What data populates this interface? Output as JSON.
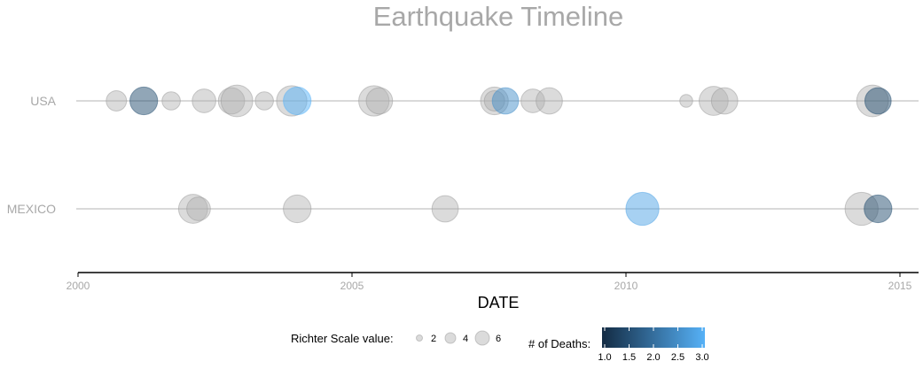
{
  "chart_data": {
    "type": "scatter",
    "title": "Earthquake Timeline",
    "xlabel": "DATE",
    "ylabel": "",
    "xlim": [
      2000,
      2015.3
    ],
    "x_ticks": [
      "2000",
      "2005",
      "2010",
      "2015"
    ],
    "categories": [
      "USA",
      "MEXICO"
    ],
    "series": [
      {
        "category": "USA",
        "points": [
          {
            "x": 2000.7,
            "size": 5.3,
            "deaths": null
          },
          {
            "x": 2001.2,
            "size": 6.4,
            "deaths": 1.5
          },
          {
            "x": 2001.7,
            "size": 5.0,
            "deaths": null
          },
          {
            "x": 2002.3,
            "size": 5.8,
            "deaths": null
          },
          {
            "x": 2002.8,
            "size": 6.2,
            "deaths": null
          },
          {
            "x": 2002.9,
            "size": 7.0,
            "deaths": null
          },
          {
            "x": 2003.4,
            "size": 5.0,
            "deaths": null
          },
          {
            "x": 2003.9,
            "size": 6.8,
            "deaths": null
          },
          {
            "x": 2004.0,
            "size": 6.4,
            "deaths": 3.0
          },
          {
            "x": 2005.4,
            "size": 6.8,
            "deaths": null
          },
          {
            "x": 2005.5,
            "size": 6.2,
            "deaths": null
          },
          {
            "x": 2007.6,
            "size": 6.4,
            "deaths": null
          },
          {
            "x": 2007.6,
            "size": 5.3,
            "deaths": null
          },
          {
            "x": 2007.8,
            "size": 6.2,
            "deaths": 2.5
          },
          {
            "x": 2008.3,
            "size": 5.8,
            "deaths": null
          },
          {
            "x": 2008.6,
            "size": 6.2,
            "deaths": null
          },
          {
            "x": 2011.1,
            "size": 4.2,
            "deaths": null
          },
          {
            "x": 2011.6,
            "size": 6.6,
            "deaths": null
          },
          {
            "x": 2011.8,
            "size": 6.2,
            "deaths": null
          },
          {
            "x": 2014.5,
            "size": 7.0,
            "deaths": null
          },
          {
            "x": 2014.6,
            "size": 6.2,
            "deaths": 1.5
          }
        ]
      },
      {
        "category": "MEXICO",
        "points": [
          {
            "x": 2002.1,
            "size": 6.6,
            "deaths": null
          },
          {
            "x": 2002.2,
            "size": 5.8,
            "deaths": null
          },
          {
            "x": 2004.0,
            "size": 6.4,
            "deaths": null
          },
          {
            "x": 2006.7,
            "size": 6.2,
            "deaths": null
          },
          {
            "x": 2010.3,
            "size": 7.2,
            "deaths": 2.8
          },
          {
            "x": 2014.3,
            "size": 7.2,
            "deaths": null
          },
          {
            "x": 2014.6,
            "size": 6.4,
            "deaths": 1.5
          }
        ]
      }
    ],
    "legend": {
      "size": {
        "title": "Richter Scale value:",
        "values": [
          "2",
          "4",
          "6"
        ]
      },
      "color": {
        "title": "# of Deaths:",
        "ticks": [
          "1.0",
          "1.5",
          "2.0",
          "2.5",
          "3.0"
        ],
        "min": 1,
        "max": 3,
        "low": "#132b43",
        "high": "#56b1f7"
      }
    },
    "neutral_color": "#b0b0b0",
    "grid": true,
    "legend_position": "bottom"
  }
}
